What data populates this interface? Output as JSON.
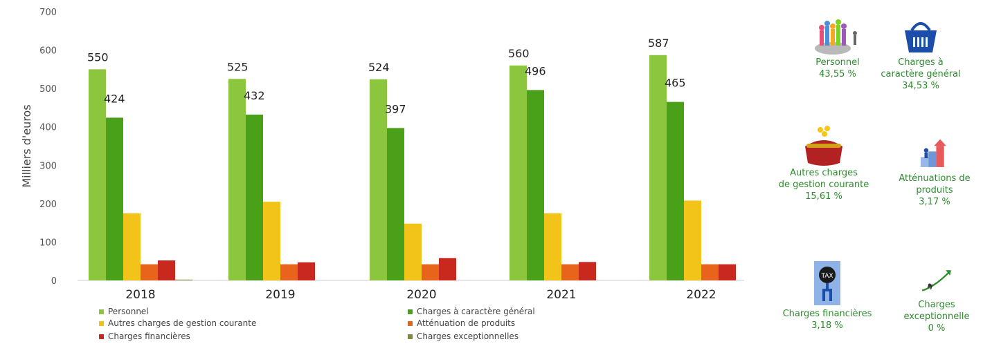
{
  "chart_data": {
    "type": "bar",
    "ylabel": "Milliers d'euros",
    "ylim": [
      0,
      700
    ],
    "yticks": [
      0,
      100,
      200,
      300,
      400,
      500,
      600,
      700
    ],
    "grid": false,
    "categories": [
      "2018",
      "2019",
      "2020",
      "2021",
      "2022"
    ],
    "series": [
      {
        "name": "Personnel",
        "color": "#8cc63f",
        "values": [
          550,
          525,
          524,
          560,
          587
        ],
        "labeled": true
      },
      {
        "name": "Charges à caractère général",
        "color": "#4aa019",
        "values": [
          424,
          432,
          397,
          496,
          465
        ],
        "labeled": true
      },
      {
        "name": "Autres charges de  gestion courante",
        "color": "#f2c318",
        "values": [
          175,
          205,
          148,
          175,
          208
        ],
        "labeled": false
      },
      {
        "name": "Atténuation de produits",
        "color": "#e8641c",
        "values": [
          42,
          42,
          42,
          42,
          42
        ],
        "labeled": false
      },
      {
        "name": "Charges financières",
        "color": "#c8281e",
        "values": [
          52,
          47,
          58,
          48,
          42
        ],
        "labeled": false
      },
      {
        "name": "Charges exceptionnelles",
        "color": "#7a8c3a",
        "values": [
          2,
          0,
          0,
          0,
          0
        ],
        "labeled": false
      }
    ],
    "legend_position": "bottom"
  },
  "breakdown": [
    {
      "label": "Personnel",
      "percent": "43,55 %",
      "icon": "people-crowd-icon"
    },
    {
      "label": "Charges à\ncaractère général",
      "percent": "34,53 %",
      "icon": "shopping-basket-icon"
    },
    {
      "label": "Autres charges\nde gestion courante",
      "percent": "15,61 %",
      "icon": "purse-coins-icon"
    },
    {
      "label": "Atténuations de\nproduits",
      "percent": "3,17 %",
      "icon": "rising-steps-icon"
    },
    {
      "label": "Charges financières",
      "percent": "3,18 %",
      "icon": "tax-ball-chain-icon"
    },
    {
      "label": "Charges\nexceptionnelle",
      "percent": "0 %",
      "icon": "trending-arrow-icon"
    }
  ]
}
